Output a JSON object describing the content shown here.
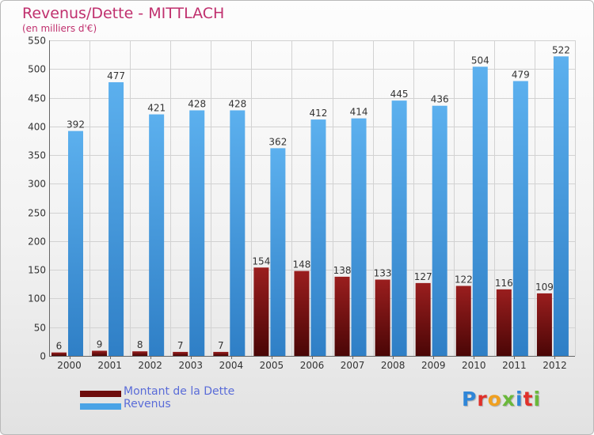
{
  "header": {
    "title": "Revenus/Dette - MITTLACH",
    "subtitle": "(en milliers d'€)"
  },
  "legend": {
    "items": [
      {
        "label": "Montant de la Dette",
        "color": "#6e0c0c"
      },
      {
        "label": "Revenus",
        "color": "#4aa3e6"
      }
    ]
  },
  "logo": {
    "text": "Proxiti",
    "letter_colors": [
      "#2f86d8",
      "#e0302a",
      "#f0a020",
      "#6ab83a",
      "#2f86d8",
      "#e0302a",
      "#6ab83a"
    ]
  },
  "chart_data": {
    "type": "bar",
    "title": "Revenus/Dette - MITTLACH",
    "ylabel": "(en milliers d'€)",
    "categories": [
      "2000",
      "2001",
      "2002",
      "2003",
      "2004",
      "2005",
      "2006",
      "2007",
      "2008",
      "2009",
      "2010",
      "2011",
      "2012"
    ],
    "series": [
      {
        "name": "Montant de la Dette",
        "color": "#6e0c0c",
        "values": [
          6,
          9,
          8,
          7,
          7,
          154,
          148,
          138,
          133,
          127,
          122,
          116,
          109
        ]
      },
      {
        "name": "Revenus",
        "color": "#4aa3e6",
        "values": [
          392,
          477,
          421,
          428,
          428,
          362,
          412,
          414,
          445,
          436,
          504,
          479,
          522
        ]
      }
    ],
    "ylim": [
      0,
      550
    ],
    "yticks": [
      0,
      50,
      100,
      150,
      200,
      250,
      300,
      350,
      400,
      450,
      500,
      550
    ],
    "grid": true,
    "legend_position": "bottom-left"
  }
}
